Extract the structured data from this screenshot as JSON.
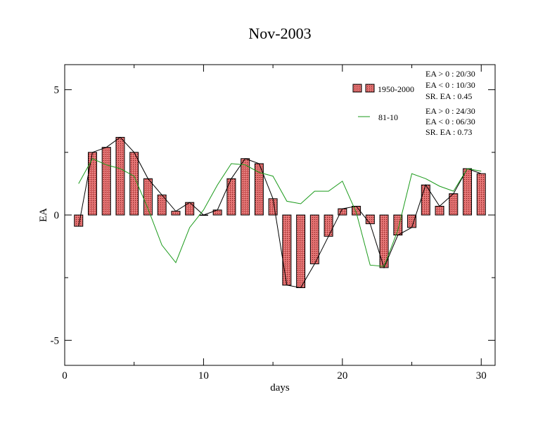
{
  "chart_data": {
    "type": "bar",
    "title": "Nov-2003",
    "xlabel": "days",
    "ylabel": "EA",
    "xlim": [
      0,
      31
    ],
    "ylim": [
      -6,
      6
    ],
    "xticks": [
      0,
      10,
      20,
      30
    ],
    "yticks": [
      -5,
      0,
      5
    ],
    "x": [
      1,
      2,
      3,
      4,
      5,
      6,
      7,
      8,
      9,
      10,
      11,
      12,
      13,
      14,
      15,
      16,
      17,
      18,
      19,
      20,
      21,
      22,
      23,
      24,
      25,
      26,
      27,
      28,
      29,
      30
    ],
    "series": [
      {
        "name": "1950-2000",
        "kind": "bar",
        "color": "#e07070",
        "values": [
          -0.45,
          2.5,
          2.7,
          3.1,
          2.5,
          1.45,
          0.8,
          0.15,
          0.5,
          0.0,
          0.2,
          1.45,
          2.25,
          2.05,
          0.65,
          -2.8,
          -2.9,
          -1.95,
          -0.85,
          0.25,
          0.35,
          -0.35,
          -2.1,
          -0.8,
          -0.5,
          1.2,
          0.35,
          0.85,
          1.85,
          1.65
        ]
      },
      {
        "name": "81-10",
        "kind": "line",
        "color": "#1a9a1a",
        "values": [
          1.25,
          2.25,
          2.0,
          1.85,
          1.55,
          0.25,
          -1.2,
          -1.9,
          -0.5,
          0.2,
          1.2,
          2.05,
          2.0,
          1.7,
          1.55,
          0.55,
          0.45,
          0.95,
          0.95,
          1.35,
          0.1,
          -2.0,
          -2.05,
          -0.6,
          1.65,
          1.45,
          1.15,
          0.95,
          1.85,
          1.75
        ]
      }
    ],
    "legend": {
      "placement": "top-right",
      "stats_1950_2000": [
        "EA > 0 : 20/30",
        "EA < 0 : 10/30",
        "SR. EA :  0.45"
      ],
      "stats_81_10": [
        "EA > 0 : 24/30",
        "EA < 0 : 06/30",
        "SR. EA :  0.73"
      ]
    },
    "grid": false
  }
}
